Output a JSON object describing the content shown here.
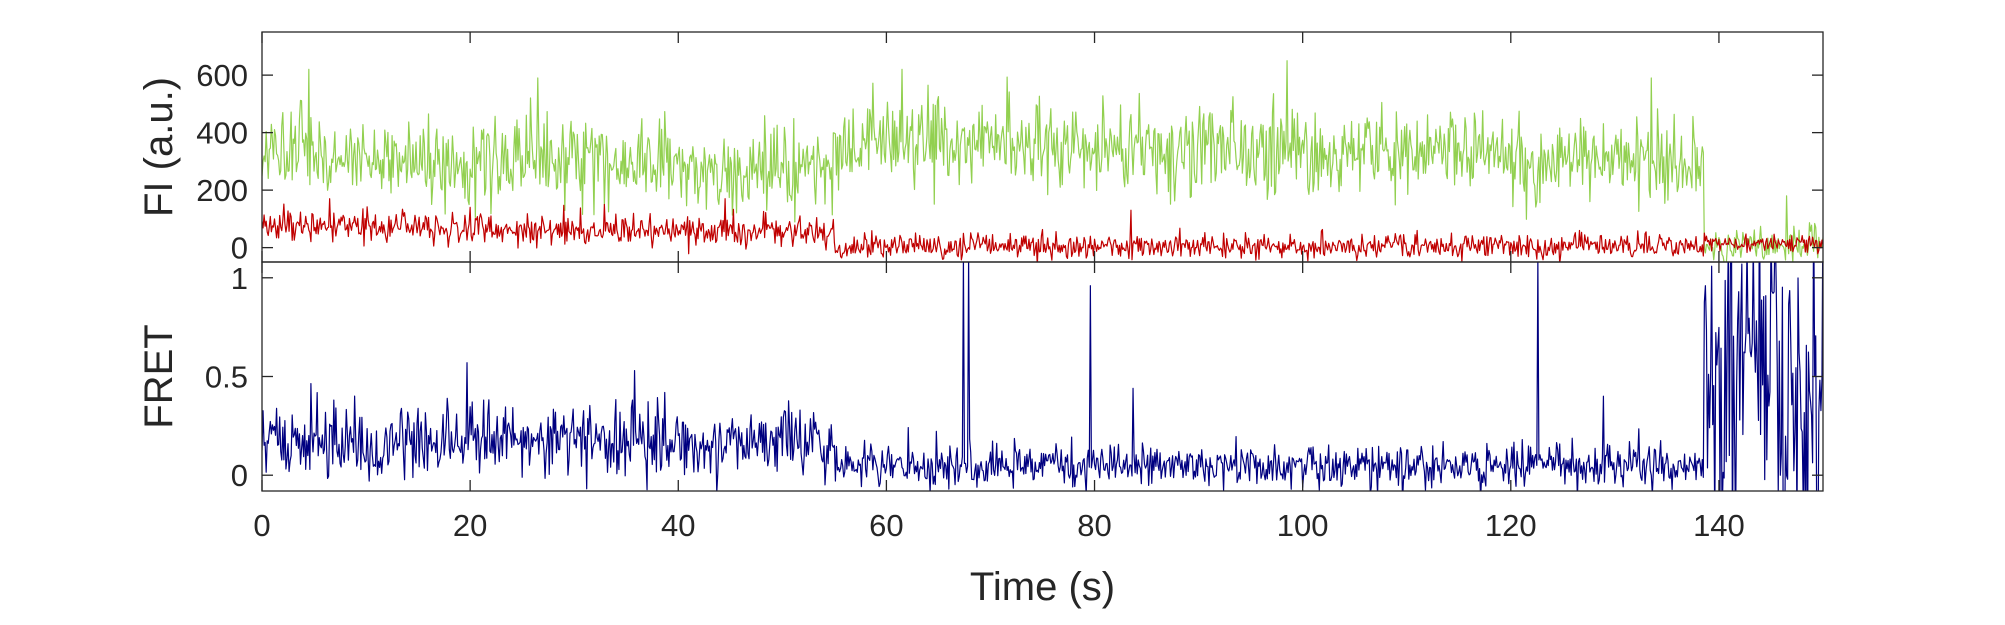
{
  "chart_data": [
    {
      "type": "line",
      "panel": "top",
      "ylabel": "FI (a.u.)",
      "xlabel": "",
      "xlim": [
        0,
        150
      ],
      "ylim": [
        -50,
        750
      ],
      "yticks": [
        0,
        200,
        400,
        600
      ],
      "grid": false,
      "legend": "none",
      "sample_interval_s": 0.1,
      "series": [
        {
          "color": "#92d050",
          "description": "green donor trace",
          "segments": [
            {
              "t_start": 0,
              "t_end": 6,
              "mean": 330,
              "noise": 75
            },
            {
              "t_start": 6,
              "t_end": 20,
              "mean": 300,
              "noise": 70
            },
            {
              "t_start": 20,
              "t_end": 40,
              "mean": 300,
              "noise": 75
            },
            {
              "t_start": 40,
              "t_end": 55,
              "mean": 265,
              "noise": 70
            },
            {
              "t_start": 55,
              "t_end": 75,
              "mean": 360,
              "noise": 80
            },
            {
              "t_start": 75,
              "t_end": 100,
              "mean": 345,
              "noise": 80
            },
            {
              "t_start": 100,
              "t_end": 120,
              "mean": 330,
              "noise": 75
            },
            {
              "t_start": 120,
              "t_end": 138.5,
              "mean": 300,
              "noise": 70
            },
            {
              "t_start": 138.5,
              "t_end": 150,
              "mean": 10,
              "noise": 30
            }
          ],
          "spikes": [
            [
              4.5,
              620
            ],
            [
              26.5,
              590
            ],
            [
              61.5,
              620
            ],
            [
              98.5,
              650
            ],
            [
              133.5,
              590
            ],
            [
              146.5,
              180
            ]
          ]
        },
        {
          "color": "#c00000",
          "description": "red acceptor trace",
          "segments": [
            {
              "t_start": 0,
              "t_end": 20,
              "mean": 70,
              "noise": 28
            },
            {
              "t_start": 20,
              "t_end": 45,
              "mean": 60,
              "noise": 28
            },
            {
              "t_start": 45,
              "t_end": 55,
              "mean": 55,
              "noise": 25
            },
            {
              "t_start": 55,
              "t_end": 100,
              "mean": 5,
              "noise": 22
            },
            {
              "t_start": 100,
              "t_end": 138.5,
              "mean": 5,
              "noise": 22
            },
            {
              "t_start": 138.5,
              "t_end": 150,
              "mean": 15,
              "noise": 18
            }
          ],
          "spikes": [
            [
              6.5,
              170
            ],
            [
              20,
              140
            ],
            [
              44.5,
              170
            ],
            [
              83.5,
              130
            ]
          ]
        }
      ]
    },
    {
      "type": "line",
      "panel": "bottom",
      "ylabel": "FRET",
      "xlabel": "Time (s)",
      "xlim": [
        0,
        150
      ],
      "ylim": [
        -0.08,
        1.08
      ],
      "yticks": [
        0,
        0.5,
        1
      ],
      "ytick_labels": [
        "0",
        "0.5",
        "1"
      ],
      "xticks": [
        0,
        20,
        40,
        60,
        80,
        100,
        120,
        140
      ],
      "grid": false,
      "legend": "none",
      "sample_interval_s": 0.1,
      "series": [
        {
          "color": "#000080",
          "description": "FRET efficiency trace",
          "segments": [
            {
              "t_start": 0,
              "t_end": 55,
              "mean": 0.17,
              "noise": 0.09
            },
            {
              "t_start": 55,
              "t_end": 138.5,
              "mean": 0.05,
              "noise": 0.055
            },
            {
              "t_start": 138.5,
              "t_end": 150,
              "mean": 0.5,
              "noise": 0.45
            }
          ],
          "spikes": [
            [
              19.7,
              0.57
            ],
            [
              35.8,
              0.53
            ],
            [
              67.4,
              1.1
            ],
            [
              67.9,
              1.1
            ],
            [
              79.6,
              0.96
            ],
            [
              83.7,
              0.44
            ],
            [
              122.6,
              1.1
            ],
            [
              128.9,
              0.4
            ]
          ]
        }
      ]
    }
  ]
}
